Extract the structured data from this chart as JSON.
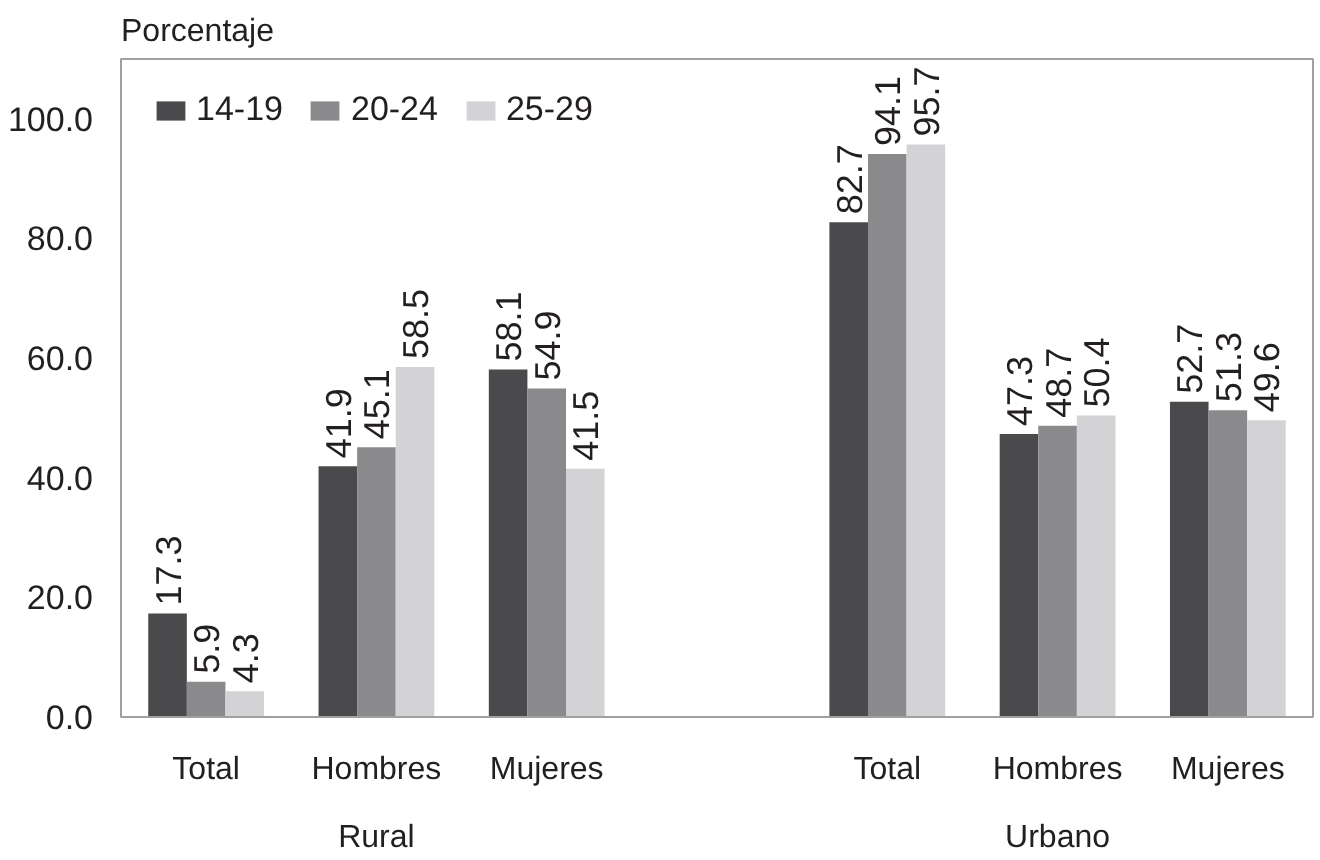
{
  "chart_data": {
    "type": "bar",
    "ylabel": "Porcentaje",
    "categories": [
      "Total",
      "Hombres",
      "Mujeres",
      null,
      "Total",
      "Hombres",
      "Mujeres"
    ],
    "annotations": [
      "Rural",
      "Urbano"
    ],
    "series": [
      {
        "name": "14-19",
        "color": "#4a4a4c",
        "values": [
          17.3,
          41.9,
          58.1,
          null,
          82.7,
          47.3,
          52.7
        ]
      },
      {
        "name": "20-24",
        "color": "#8a8a8c",
        "values": [
          5.9,
          45.1,
          54.9,
          null,
          94.1,
          48.7,
          51.3
        ]
      },
      {
        "name": "25-29",
        "color": "#d3d3d5",
        "values": [
          4.3,
          58.5,
          41.5,
          null,
          95.7,
          50.4,
          49.6
        ]
      }
    ],
    "ylim": [
      0,
      110
    ],
    "yticks": [
      {
        "value": 0,
        "label": "0.0"
      },
      {
        "value": 20,
        "label": "20.0"
      },
      {
        "value": 40,
        "label": "40.0"
      },
      {
        "value": 60,
        "label": "60.0"
      },
      {
        "value": 80,
        "label": "80.0"
      },
      {
        "value": 100,
        "label": "100.0"
      }
    ],
    "grid": false,
    "legend": "top left",
    "data_labels": true
  }
}
